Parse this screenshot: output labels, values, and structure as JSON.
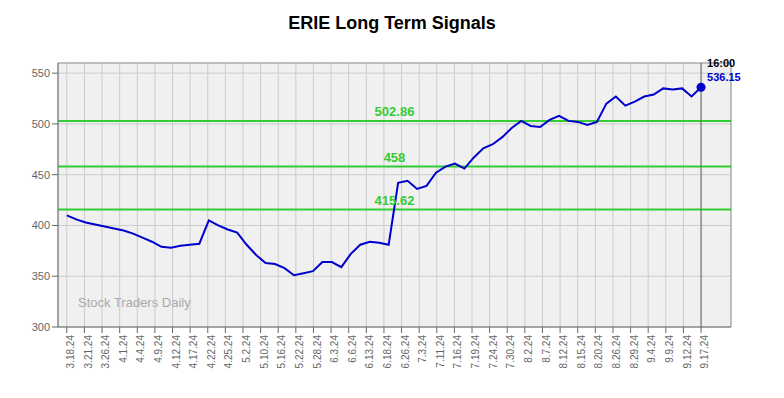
{
  "chart_data": {
    "type": "line",
    "title": "ERIE Long Term Signals",
    "color": "#0000cc",
    "grid": true,
    "grid_color": "#cccccc",
    "background": "#f0f0f0",
    "values": [
      410,
      406,
      403,
      401,
      399,
      397,
      395,
      392,
      388,
      384,
      379,
      378,
      380,
      381,
      382,
      405,
      400,
      396,
      393,
      381,
      371,
      363,
      362,
      358,
      351,
      353,
      355,
      364,
      364,
      359,
      372,
      381,
      384,
      383,
      381,
      442,
      444,
      436,
      439,
      452,
      458,
      461,
      456,
      467,
      476,
      480,
      487,
      496,
      503,
      498,
      497,
      504,
      508,
      503,
      502,
      499,
      502,
      520,
      527,
      518,
      522,
      527,
      529,
      535,
      534,
      535,
      527,
      536.15
    ],
    "xlim": [
      -0.5,
      37.7
    ],
    "xticks": [
      {
        "value": 0,
        "label": "3.18.24"
      },
      {
        "value": 1,
        "label": "3.21.24"
      },
      {
        "value": 2,
        "label": "3.26.24"
      },
      {
        "value": 3,
        "label": "4.1.24"
      },
      {
        "value": 4,
        "label": "4.4.24"
      },
      {
        "value": 5,
        "label": "4.9.24"
      },
      {
        "value": 6,
        "label": "4.12.24"
      },
      {
        "value": 7,
        "label": "4.17.24"
      },
      {
        "value": 8,
        "label": "4.22.24"
      },
      {
        "value": 9,
        "label": "4.25.24"
      },
      {
        "value": 10,
        "label": "5.2.24"
      },
      {
        "value": 11,
        "label": "5.10.24"
      },
      {
        "value": 12,
        "label": "5.16.24"
      },
      {
        "value": 13,
        "label": "5.22.24"
      },
      {
        "value": 14,
        "label": "5.28.24"
      },
      {
        "value": 15,
        "label": "6.3.24"
      },
      {
        "value": 16,
        "label": "6.6.24"
      },
      {
        "value": 17,
        "label": "6.13.24"
      },
      {
        "value": 18,
        "label": "6.18.24"
      },
      {
        "value": 19,
        "label": "6.26.24"
      },
      {
        "value": 20,
        "label": "7.3.24"
      },
      {
        "value": 21,
        "label": "7.11.24"
      },
      {
        "value": 22,
        "label": "7.16.24"
      },
      {
        "value": 23,
        "label": "7.19.24"
      },
      {
        "value": 24,
        "label": "7.24.24"
      },
      {
        "value": 25,
        "label": "7.30.24"
      },
      {
        "value": 26,
        "label": "8.2.24"
      },
      {
        "value": 27,
        "label": "8.7.24"
      },
      {
        "value": 28,
        "label": "8.12.24"
      },
      {
        "value": 29,
        "label": "8.15.24"
      },
      {
        "value": 30,
        "label": "8.20.24"
      },
      {
        "value": 31,
        "label": "8.26.24"
      },
      {
        "value": 32,
        "label": "8.29.24"
      },
      {
        "value": 33,
        "label": "9.4.24"
      },
      {
        "value": 34,
        "label": "9.9.24"
      },
      {
        "value": 35,
        "label": "9.12.24"
      },
      {
        "value": 36,
        "label": "9.17.24"
      }
    ],
    "ylim": [
      300,
      560
    ],
    "yticks": [
      300,
      350,
      400,
      450,
      500,
      550
    ],
    "hlines": [
      {
        "y": 502.86,
        "label": "502.86",
        "color": "#33cc33"
      },
      {
        "y": 458.0,
        "label": "458",
        "color": "#33cc33"
      },
      {
        "y": 415.62,
        "label": "415.62",
        "color": "#33cc33"
      }
    ],
    "vline": {
      "color": "#666666"
    },
    "annotations": [
      {
        "text": "16:00",
        "color": "#000000"
      },
      {
        "text": "536.15",
        "color": "#0000cc"
      }
    ],
    "watermark": {
      "text": "Stock Traders Daily",
      "color": "#aaaaaa"
    }
  }
}
